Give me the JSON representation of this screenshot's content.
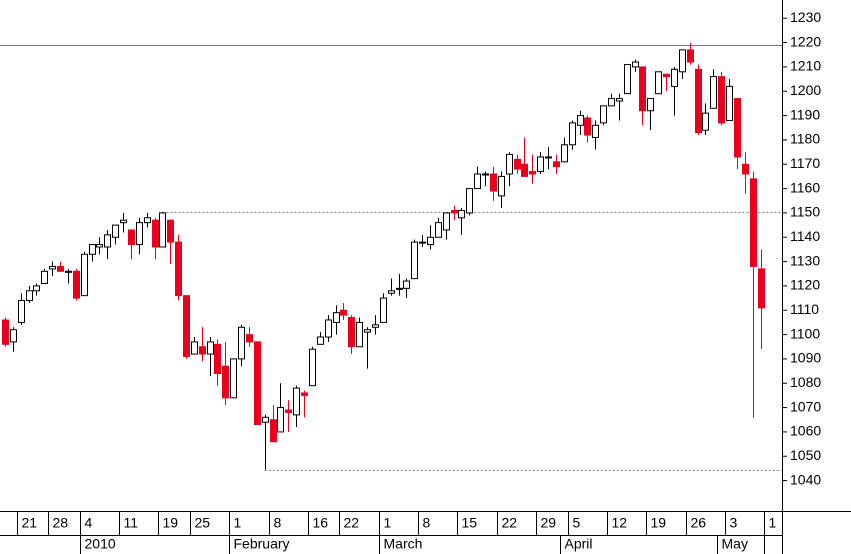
{
  "chart_data": {
    "type": "candlestick",
    "categories": [
      null,
      null,
      "21",
      null,
      null,
      null,
      "28",
      null,
      null,
      null,
      "4",
      null,
      null,
      null,
      null,
      "11",
      null,
      null,
      null,
      null,
      "19",
      null,
      null,
      null,
      "25",
      null,
      null,
      null,
      null,
      "1",
      null,
      null,
      null,
      null,
      "8",
      null,
      null,
      null,
      null,
      "16",
      null,
      null,
      null,
      "22",
      null,
      null,
      null,
      null,
      "1",
      null,
      null,
      null,
      null,
      "8",
      null,
      null,
      null,
      null,
      "15",
      null,
      null,
      null,
      null,
      "22",
      null,
      null,
      null,
      null,
      "29",
      null,
      null,
      null,
      "5",
      null,
      null,
      null,
      null,
      "12",
      null,
      null,
      null,
      null,
      "19",
      null,
      null,
      null,
      null,
      "26",
      null,
      null,
      null,
      null,
      "3",
      null,
      null,
      null,
      null,
      "1"
    ],
    "month_labels": [
      null,
      null,
      null,
      null,
      null,
      null,
      null,
      null,
      null,
      null,
      "2010",
      null,
      null,
      null,
      null,
      null,
      null,
      null,
      null,
      null,
      null,
      null,
      null,
      null,
      null,
      null,
      null,
      null,
      null,
      "February",
      null,
      null,
      null,
      null,
      null,
      null,
      null,
      null,
      null,
      null,
      null,
      null,
      null,
      null,
      null,
      null,
      null,
      null,
      "March",
      null,
      null,
      null,
      null,
      null,
      null,
      null,
      null,
      null,
      null,
      null,
      null,
      null,
      null,
      null,
      null,
      null,
      null,
      null,
      null,
      null,
      null,
      "April",
      null,
      null,
      null,
      null,
      null,
      null,
      null,
      null,
      null,
      null,
      null,
      null,
      null,
      null,
      null,
      null,
      null,
      null,
      null,
      "May",
      null,
      null,
      null,
      null,
      null
    ],
    "open": [
      1106,
      1097,
      1105,
      1114,
      1118,
      1121,
      1127,
      1128,
      1126,
      1126,
      1116,
      1133,
      1136,
      1136,
      1140,
      1146,
      1143,
      1137,
      1146,
      1147,
      1136,
      1147,
      1138,
      1116,
      1092,
      1095,
      1092,
      1096,
      1087,
      1074,
      1090,
      1100,
      1097,
      1064,
      1065,
      1060,
      1069,
      1067,
      1076,
      1079,
      1096,
      1099,
      1105,
      1110,
      1107,
      1095,
      1101,
      1103,
      1105,
      1117,
      1119,
      1119,
      1123,
      1138,
      1137,
      1140,
      1143,
      1151,
      1148,
      1150,
      1160,
      1166,
      1166,
      1157,
      1166,
      1172,
      1170,
      1167,
      1167,
      1173,
      1171,
      1171,
      1178,
      1186,
      1189,
      1181,
      1187,
      1194,
      1196,
      1199,
      1210,
      1210,
      1192,
      1199,
      1207,
      1202,
      1208,
      1217,
      1209,
      1184,
      1193,
      1206,
      1188,
      1197,
      1170,
      1164,
      1127,
      null
    ],
    "high": [
      1107,
      1103,
      1117,
      1120,
      1121,
      1127,
      1130,
      1130,
      1127,
      1127,
      1134,
      1137,
      1140,
      1143,
      1145,
      1150,
      1143,
      1148,
      1150,
      1148,
      1150.45,
      1147,
      1141,
      1116,
      1099,
      1103,
      1099,
      1098,
      1097,
      1090,
      1104,
      1103,
      1097,
      1067,
      1071,
      1080,
      1073,
      1079,
      1077,
      1095,
      1101,
      1108,
      1112,
      1113,
      1108,
      1107,
      1103,
      1108,
      1117,
      1123,
      1125,
      1123,
      1139,
      1141,
      1145,
      1148,
      1150,
      1153,
      1152,
      1160,
      1169,
      1167,
      1169,
      1167,
      1175,
      1174,
      1181,
      1174,
      1175,
      1177,
      1174,
      1181,
      1188,
      1192,
      1190,
      1188,
      1194,
      1199,
      1199,
      1211,
      1213,
      1210,
      1197,
      1208,
      1207,
      1210,
      1217,
      1219.8,
      1211,
      1195,
      1209,
      1208,
      1205,
      1197,
      1175,
      1167,
      1135,
      null
    ],
    "low": [
      1095,
      1093,
      1104,
      1113,
      1116,
      1121,
      1124,
      1126,
      1121,
      1114,
      1116,
      1130,
      1133,
      1131,
      1137,
      1142,
      1131,
      1133,
      1144,
      1131,
      1136,
      1129,
      1114,
      1090,
      1092,
      1089,
      1083,
      1079,
      1071,
      1074,
      1087,
      1095,
      1063,
      1044.5,
      1056,
      1060,
      1060,
      1062,
      1066,
      1079,
      1096,
      1097,
      1100,
      1106,
      1092,
      1095,
      1086,
      1100,
      1105,
      1116,
      1116,
      1115,
      1123,
      1136,
      1135,
      1140,
      1139,
      1147,
      1141,
      1149,
      1160,
      1161,
      1155,
      1152,
      1161,
      1166,
      1165,
      1162,
      1166,
      1168,
      1166,
      1171,
      1176,
      1182,
      1179,
      1176,
      1186,
      1194,
      1188,
      1199,
      1208,
      1186,
      1184,
      1199,
      1200,
      1190,
      1205,
      1211,
      1182,
      1182,
      1193,
      1186,
      1188,
      1168,
      1158,
      1065.8,
      1094,
      null
    ],
    "close": [
      1096,
      1102,
      1114,
      1118,
      1120,
      1126,
      1128,
      1126,
      1126,
      1115,
      1133,
      1137,
      1137,
      1141,
      1145,
      1147,
      1137,
      1146,
      1148,
      1136,
      1150,
      1138,
      1116,
      1091,
      1097,
      1092,
      1097,
      1084,
      1074,
      1090,
      1103,
      1097,
      1063,
      1066,
      1056,
      1070,
      1068,
      1078,
      1075,
      1094,
      1099,
      1106,
      1109,
      1108,
      1095,
      1105,
      1102,
      1104,
      1115,
      1118,
      1119,
      1122,
      1138,
      1138,
      1140,
      1146,
      1150,
      1150,
      1151,
      1160,
      1166,
      1166,
      1159,
      1165,
      1174,
      1168,
      1165,
      1166,
      1173,
      1173,
      1169,
      1178,
      1187,
      1190,
      1182,
      1186,
      1194,
      1197,
      1197,
      1211,
      1212,
      1192,
      1197,
      1208,
      1206,
      1209,
      1217,
      1212,
      1183,
      1191,
      1206,
      1187,
      1202,
      1173,
      1166,
      1128,
      1111,
      null
    ],
    "up_color": "#ffffff",
    "down_color": "#e8001c",
    "outline_color": "#000000",
    "ylim": [
      1027.5,
      1237.5
    ],
    "yticks": [
      1040,
      1050,
      1060,
      1070,
      1080,
      1090,
      1100,
      1110,
      1120,
      1130,
      1140,
      1150,
      1160,
      1170,
      1180,
      1190,
      1200,
      1210,
      1220,
      1230
    ],
    "reference_lines": [
      {
        "value": 1219,
        "color": "#3aa03a",
        "style": "solid"
      },
      {
        "value": 1150.45,
        "color": "#808080",
        "style": "dotted",
        "from": "high"
      },
      {
        "value": 1044.5,
        "color": "#808080",
        "style": "dotted",
        "from": "low"
      }
    ]
  }
}
